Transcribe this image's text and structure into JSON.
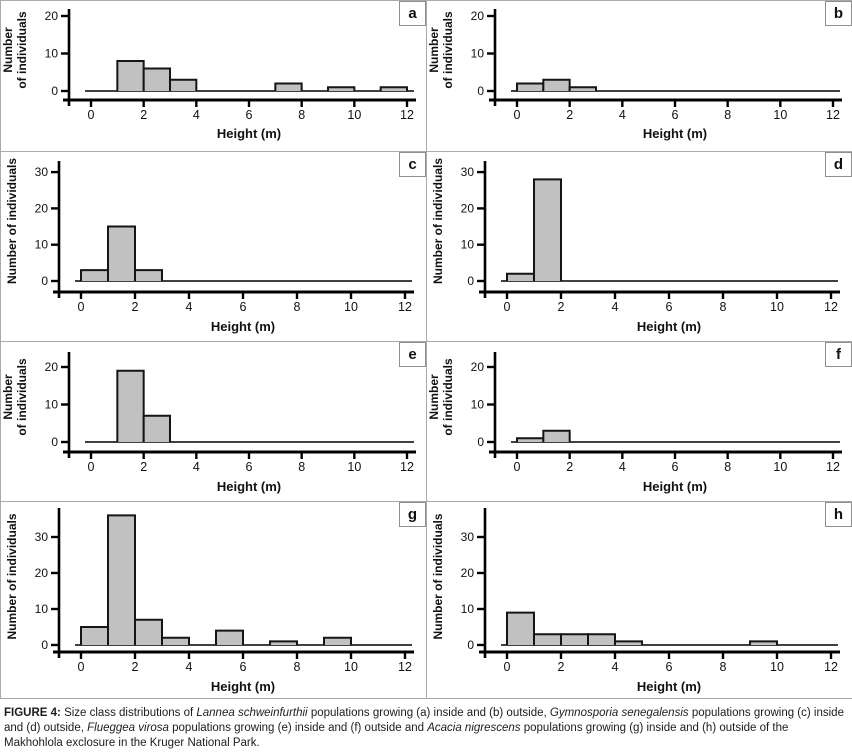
{
  "figure": {
    "caption_segments": [
      {
        "text": "FIGURE 4: ",
        "style": "b"
      },
      {
        "text": "Size class distributions of ",
        "style": ""
      },
      {
        "text": "Lannea schweinfurthii",
        "style": "i"
      },
      {
        "text": " populations growing (a) inside and (b) outside, ",
        "style": ""
      },
      {
        "text": "Gymnosporia senegalensis",
        "style": "i"
      },
      {
        "text": " populations growing (c) inside and (d) outside, ",
        "style": ""
      },
      {
        "text": "Flueggea virosa",
        "style": "i"
      },
      {
        "text": " populations growing (e) inside and (f) outside and ",
        "style": ""
      },
      {
        "text": "Acacia nigrescens",
        "style": "i"
      },
      {
        "text": " populations growing (g) inside and (h) outside of the Makhohlola exclosure in the Kruger National Park.",
        "style": ""
      }
    ]
  },
  "colors": {
    "bar_fill": "#c1c1c1",
    "bar_stroke": "#151515",
    "axis": "#000000",
    "panel_border": "#a9a9a9"
  },
  "chart_data": [
    {
      "type": "bar",
      "panel": "a",
      "species": "Lannea schweinfurthii",
      "location": "inside",
      "xlabel": "Height (m)",
      "ylabel": "Number of individuals",
      "ylabel_lines": [
        "Number",
        "of individuals"
      ],
      "xticks": [
        0,
        2,
        4,
        6,
        8,
        10,
        12
      ],
      "yticks": [
        0,
        10,
        20
      ],
      "xlim": [
        0,
        12.2
      ],
      "ylim": [
        0,
        22
      ],
      "bin_width": 1,
      "bars": [
        {
          "x": 1,
          "count": 8
        },
        {
          "x": 2,
          "count": 6
        },
        {
          "x": 3,
          "count": 3
        },
        {
          "x": 7,
          "count": 2
        },
        {
          "x": 9,
          "count": 1
        },
        {
          "x": 11,
          "count": 1
        }
      ]
    },
    {
      "type": "bar",
      "panel": "b",
      "species": "Lannea schweinfurthii",
      "location": "outside",
      "xlabel": "Height (m)",
      "ylabel": "Number of individuals",
      "ylabel_lines": [
        "Number",
        "of individuals"
      ],
      "xticks": [
        0,
        2,
        4,
        6,
        8,
        10,
        12
      ],
      "yticks": [
        0,
        10,
        20
      ],
      "xlim": [
        0,
        12.2
      ],
      "ylim": [
        0,
        22
      ],
      "bin_width": 1,
      "bars": [
        {
          "x": 0,
          "count": 2
        },
        {
          "x": 1,
          "count": 3
        },
        {
          "x": 2,
          "count": 1
        }
      ]
    },
    {
      "type": "bar",
      "panel": "c",
      "species": "Gymnosporia senegalensis",
      "location": "inside",
      "xlabel": "Height (m)",
      "ylabel": "Number of individuals",
      "ylabel_lines": [
        "Number of individuals"
      ],
      "xticks": [
        0,
        2,
        4,
        6,
        8,
        10,
        12
      ],
      "yticks": [
        0,
        10,
        20,
        30
      ],
      "xlim": [
        0,
        12.2
      ],
      "ylim": [
        0,
        33
      ],
      "bin_width": 1,
      "bars": [
        {
          "x": 0,
          "count": 3
        },
        {
          "x": 1,
          "count": 15
        },
        {
          "x": 2,
          "count": 3
        }
      ]
    },
    {
      "type": "bar",
      "panel": "d",
      "species": "Gymnosporia senegalensis",
      "location": "outside",
      "xlabel": "Height (m)",
      "ylabel": "Number of individuals",
      "ylabel_lines": [
        "Number of individuals"
      ],
      "xticks": [
        0,
        2,
        4,
        6,
        8,
        10,
        12
      ],
      "yticks": [
        0,
        10,
        20,
        30
      ],
      "xlim": [
        0,
        12.2
      ],
      "ylim": [
        0,
        33
      ],
      "bin_width": 1,
      "bars": [
        {
          "x": 0,
          "count": 2
        },
        {
          "x": 1,
          "count": 28
        }
      ]
    },
    {
      "type": "bar",
      "panel": "e",
      "species": "Flueggea virosa",
      "location": "inside",
      "xlabel": "Height (m)",
      "ylabel": "Number of individuals",
      "ylabel_lines": [
        "Number",
        "of individuals"
      ],
      "xticks": [
        0,
        2,
        4,
        6,
        8,
        10,
        12
      ],
      "yticks": [
        0,
        10,
        20
      ],
      "xlim": [
        0,
        12.2
      ],
      "ylim": [
        0,
        23
      ],
      "bin_width": 1,
      "bars": [
        {
          "x": 1,
          "count": 19
        },
        {
          "x": 2,
          "count": 7
        }
      ]
    },
    {
      "type": "bar",
      "panel": "f",
      "species": "Flueggea virosa",
      "location": "outside",
      "xlabel": "Height (m)",
      "ylabel": "Number of individuals",
      "ylabel_lines": [
        "Number",
        "of individuals"
      ],
      "xticks": [
        0,
        2,
        4,
        6,
        8,
        10,
        12
      ],
      "yticks": [
        0,
        10,
        20
      ],
      "xlim": [
        0,
        12.2
      ],
      "ylim": [
        0,
        23
      ],
      "bin_width": 1,
      "bars": [
        {
          "x": 0,
          "count": 1
        },
        {
          "x": 1,
          "count": 3
        }
      ]
    },
    {
      "type": "bar",
      "panel": "g",
      "species": "Acacia nigrescens",
      "location": "inside",
      "xlabel": "Height (m)",
      "ylabel": "Number of individuals",
      "ylabel_lines": [
        "Number of individuals"
      ],
      "xticks": [
        0,
        2,
        4,
        6,
        8,
        10,
        12
      ],
      "yticks": [
        0,
        10,
        20,
        30
      ],
      "xlim": [
        0,
        12.2
      ],
      "ylim": [
        0,
        38
      ],
      "bin_width": 1,
      "bars": [
        {
          "x": 0,
          "count": 5
        },
        {
          "x": 1,
          "count": 36
        },
        {
          "x": 2,
          "count": 7
        },
        {
          "x": 3,
          "count": 2
        },
        {
          "x": 5,
          "count": 4
        },
        {
          "x": 7,
          "count": 1
        },
        {
          "x": 9,
          "count": 2
        }
      ]
    },
    {
      "type": "bar",
      "panel": "h",
      "species": "Acacia nigrescens",
      "location": "outside",
      "xlabel": "Height (m)",
      "ylabel": "Number of individuals",
      "ylabel_lines": [
        "Number of individuals"
      ],
      "xticks": [
        0,
        2,
        4,
        6,
        8,
        10,
        12
      ],
      "yticks": [
        0,
        10,
        20,
        30
      ],
      "xlim": [
        0,
        12.2
      ],
      "ylim": [
        0,
        38
      ],
      "bin_width": 1,
      "bars": [
        {
          "x": 0,
          "count": 9
        },
        {
          "x": 1,
          "count": 3
        },
        {
          "x": 2,
          "count": 3
        },
        {
          "x": 3,
          "count": 3
        },
        {
          "x": 4,
          "count": 1
        },
        {
          "x": 9,
          "count": 1
        }
      ]
    }
  ]
}
